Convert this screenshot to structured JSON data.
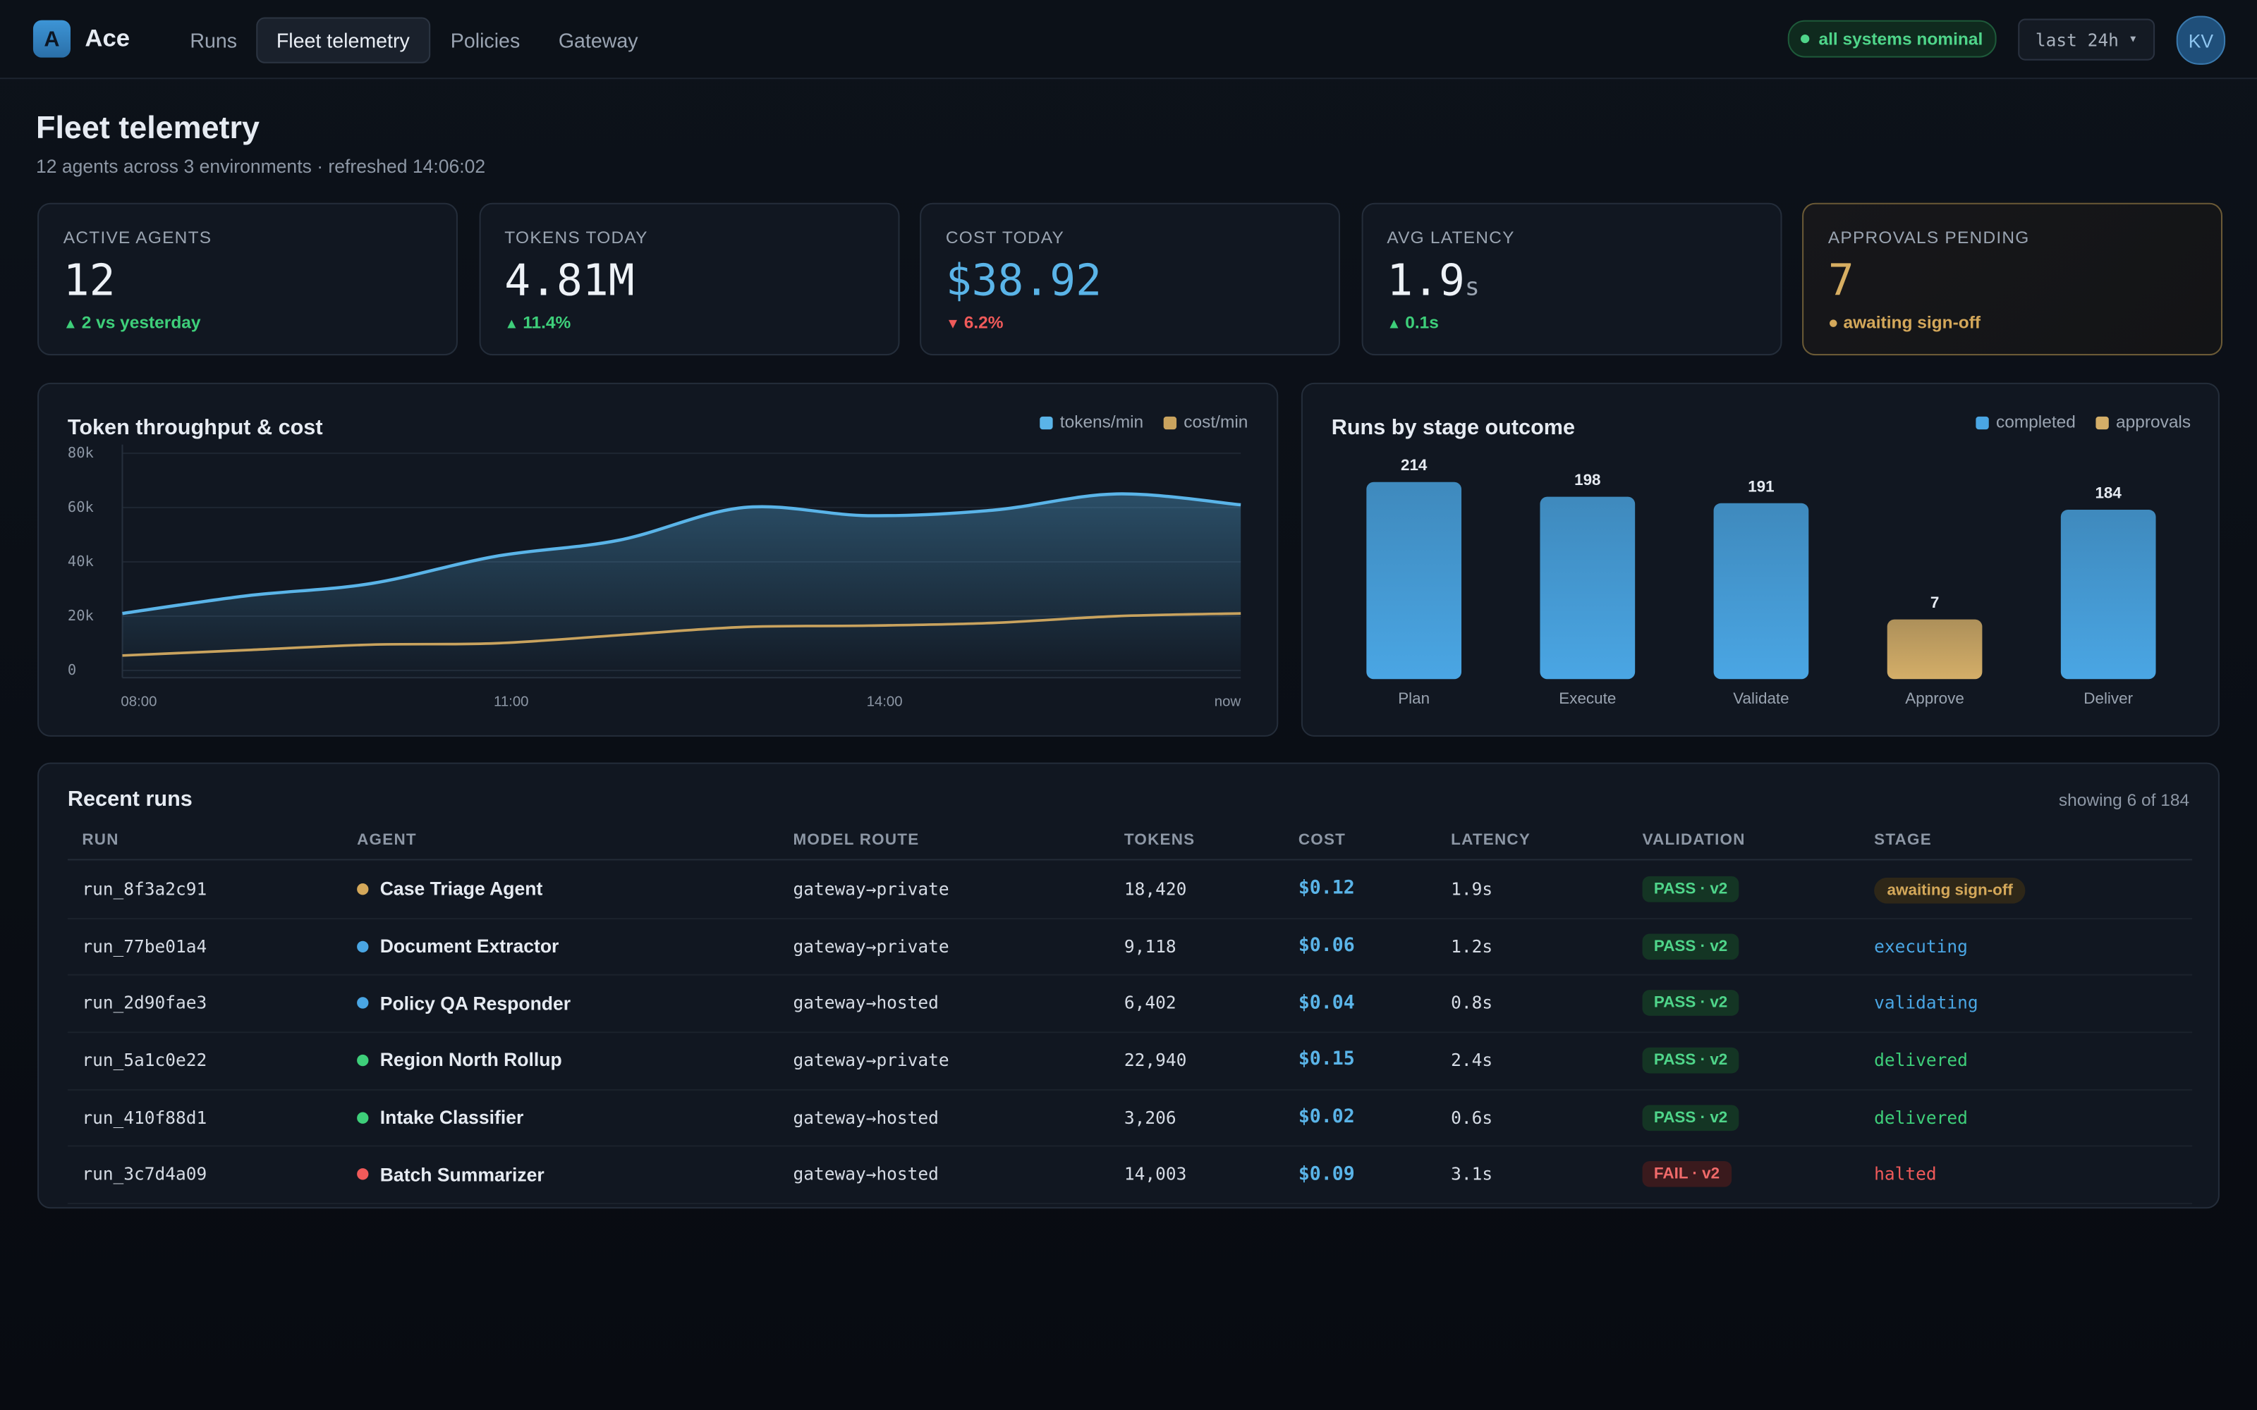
{
  "nav": {
    "brand_initial": "A",
    "brand": "Ace",
    "items": [
      "Runs",
      "Fleet telemetry",
      "Policies",
      "Gateway"
    ],
    "active": 1,
    "status": "all systems nominal",
    "range": "last 24h",
    "avatar": "KV"
  },
  "header": {
    "title": "Fleet telemetry",
    "subtitle": "12 agents across 3 environments · refreshed 14:06:02"
  },
  "kpis": [
    {
      "label": "ACTIVE AGENTS",
      "value": "12",
      "delta": "2 vs yesterday",
      "trend": "up"
    },
    {
      "label": "TOKENS TODAY",
      "value": "4.81M",
      "delta": "11.4%",
      "trend": "up"
    },
    {
      "label": "COST TODAY",
      "value": "$38.92",
      "delta": "6.2%",
      "trend": "down",
      "accent": "blue"
    },
    {
      "label": "AVG LATENCY",
      "value": "1.9",
      "unit": "s",
      "delta": "0.1s",
      "trend": "up"
    },
    {
      "label": "APPROVALS PENDING",
      "value": "7",
      "delta": "awaiting sign-off",
      "trend": "pending",
      "accent": "amber"
    }
  ],
  "chart_data": [
    {
      "type": "line",
      "title": "Token throughput & cost",
      "x": [
        8,
        9,
        10,
        11,
        12,
        13,
        14,
        15,
        16,
        17
      ],
      "xlim": [
        8,
        17
      ],
      "xticks": [
        {
          "value": 8,
          "label": "08:00"
        },
        {
          "value": 11,
          "label": "11:00"
        },
        {
          "value": 14,
          "label": "14:00"
        },
        {
          "value": 17,
          "label": "now"
        }
      ],
      "ylim": [
        0,
        80000
      ],
      "yticks": [
        0,
        {
          "value": 20000,
          "label": "20k"
        },
        {
          "value": 40000,
          "label": "40k"
        },
        {
          "value": 60000,
          "label": "60k"
        },
        {
          "value": 80000,
          "label": "80k"
        }
      ],
      "grid": true,
      "legend": "top-right",
      "series": [
        {
          "name": "tokens/min",
          "color": "#5ab4e8",
          "values": [
            21000,
            27500,
            32000,
            42000,
            48000,
            60000,
            57000,
            59000,
            65000,
            61000
          ],
          "area": true
        },
        {
          "name": "cost/min",
          "color": "#c9a35e",
          "values": [
            5500,
            7500,
            9500,
            10000,
            13000,
            16000,
            16500,
            17500,
            20000,
            21000
          ]
        }
      ]
    },
    {
      "type": "bar",
      "title": "Runs by stage outcome",
      "categories": [
        "Plan",
        "Execute",
        "Validate",
        "Approve",
        "Deliver"
      ],
      "ylim": [
        0,
        250
      ],
      "y2lim": [
        0,
        27
      ],
      "legend": "top-right",
      "series": [
        {
          "name": "completed",
          "color": "#4aa6e4",
          "values": [
            214,
            198,
            191,
            null,
            184
          ]
        },
        {
          "name": "approvals",
          "color": "#d4ae68",
          "values": [
            null,
            null,
            null,
            7,
            null
          ],
          "axis": "y2"
        }
      ]
    }
  ],
  "table": {
    "title": "Recent runs",
    "summary": "showing 6 of 184",
    "columns": [
      "RUN",
      "AGENT",
      "MODEL ROUTE",
      "TOKENS",
      "COST",
      "LATENCY",
      "VALIDATION",
      "STAGE"
    ],
    "rows": [
      [
        "run_8f3a2c91",
        "Case Triage Agent",
        "gateway→private",
        "18,420",
        "$0.12",
        "1.9s",
        "PASS · v2",
        "awaiting sign-off"
      ],
      [
        "run_77be01a4",
        "Document Extractor",
        "gateway→private",
        "9,118",
        "$0.06",
        "1.2s",
        "PASS · v2",
        "executing"
      ],
      [
        "run_2d90fae3",
        "Policy QA Responder",
        "gateway→hosted",
        "6,402",
        "$0.04",
        "0.8s",
        "PASS · v2",
        "validating"
      ],
      [
        "run_5a1c0e22",
        "Region North Rollup",
        "gateway→private",
        "22,940",
        "$0.15",
        "2.4s",
        "PASS · v2",
        "delivered"
      ],
      [
        "run_410f88d1",
        "Intake Classifier",
        "gateway→hosted",
        "3,206",
        "$0.02",
        "0.6s",
        "PASS · v2",
        "delivered"
      ],
      [
        "run_3c7d4a09",
        "Batch Summarizer",
        "gateway→hosted",
        "14,003",
        "$0.09",
        "3.1s",
        "FAIL · v2",
        "halted"
      ]
    ],
    "row_tones": [
      "amber",
      "blue",
      "blue",
      "green",
      "green",
      "red"
    ],
    "validation_tones": [
      "green",
      "green",
      "green",
      "green",
      "green",
      "red"
    ]
  }
}
